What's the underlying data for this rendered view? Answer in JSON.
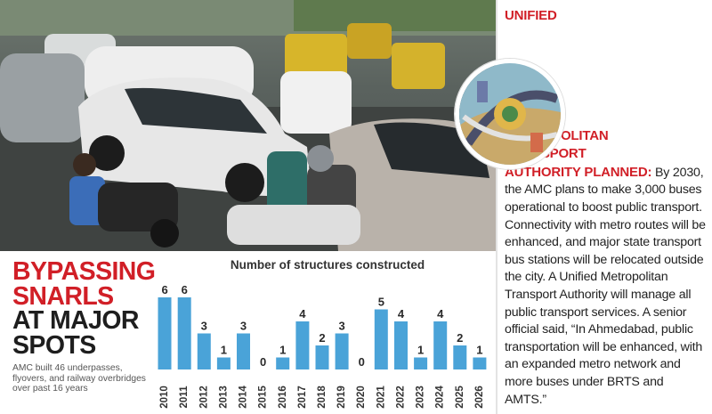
{
  "headline": {
    "red_lines": [
      "BYPASSING",
      "SNARLS"
    ],
    "black_lines": [
      "AT MAJOR",
      "SPOTS"
    ]
  },
  "subtext": "AMC built 46 underpasses, flyovers, and railway overbridges over past 16 years",
  "sidebar": {
    "lead": "UNIFIED METROPOLITAN TRANSPORT AUTHORITY PLANNED:",
    "body": " By 2030, the AMC plans to make 3,000 buses operational to boost public transport. Connectivity with metro routes will be enhanced, and major state transport bus stations will be relocated outside the city. A Unified Metropolitan Transport Authority will manage all public transport services. A senior official said, “In Ahmedabad, public transportation will be enhanced, with an expanded metro network and more buses under BRTS and AMTS.”"
  },
  "chart_data": {
    "type": "bar",
    "title": "Number of structures constructed",
    "categories": [
      "2010",
      "2011",
      "2012",
      "2013",
      "2014",
      "2015",
      "2016",
      "2017",
      "2018",
      "2019",
      "2020",
      "2021",
      "2022",
      "2023",
      "2024",
      "2025",
      "2026"
    ],
    "values": [
      6,
      6,
      3,
      1,
      3,
      0,
      1,
      4,
      2,
      3,
      0,
      5,
      4,
      1,
      4,
      2,
      1
    ],
    "ylim": [
      0,
      6
    ],
    "bar_color": "#4aa3d8",
    "data_labels": true,
    "grid": false
  },
  "colors": {
    "accent_red": "#d11f27",
    "bar_blue": "#4aa3d8"
  }
}
